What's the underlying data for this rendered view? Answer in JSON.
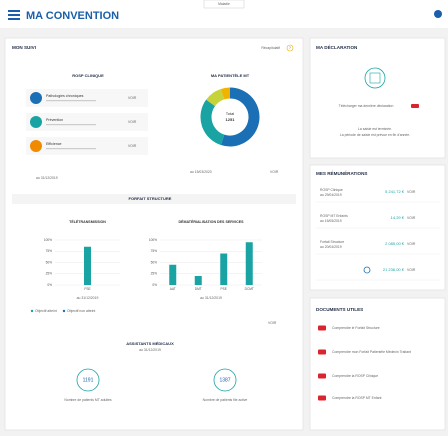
{
  "header": {
    "title": "MA CONVENTION",
    "tab": "Maladie"
  },
  "suivi": {
    "title": "MON SUIVI",
    "recap": "Récapitulatif",
    "help": "?",
    "rosp": {
      "title": "ROSP CLINIQUE",
      "items": [
        "Pathologies chroniques",
        "Prévention",
        "Efficience"
      ],
      "link": "VOIR",
      "date": "au 31/12/2019"
    },
    "patientele": {
      "title": "MA PATIENTÈLE MT",
      "total_label": "Total",
      "total": "1251",
      "date": "au 15/03/2020",
      "link": "VOIR",
      "segments": [
        {
          "color": "#1b6fb5",
          "value": 55
        },
        {
          "color": "#19a3a3",
          "value": 30
        },
        {
          "color": "#c6d33a",
          "value": 10
        },
        {
          "color": "#f0b400",
          "value": 5
        }
      ]
    },
    "forfait": {
      "title": "FORFAIT STRUCTURE",
      "charts": [
        {
          "title": "TÉLÉTRANSMISSION",
          "categories": [
            "FSE"
          ],
          "values": [
            85
          ],
          "color": "#19a3a3",
          "ylim": [
            0,
            100
          ],
          "yticks": [
            {
              "value": 0,
              "label": "0%"
            },
            {
              "value": 25,
              "label": "25%"
            },
            {
              "value": 50,
              "label": "50%"
            },
            {
              "value": 75,
              "label": "75%"
            },
            {
              "value": 100,
              "label": "100%"
            }
          ],
          "date": "au 31/12/2019"
        },
        {
          "title": "DÉMATÉRIALISATION DES SERVICES",
          "categories": [
            "AAT",
            "DMT",
            "PSE",
            "DCMT"
          ],
          "values": [
            45,
            20,
            70,
            95
          ],
          "color": "#19a3a3",
          "ylim": [
            0,
            100
          ],
          "yticks": [
            {
              "value": 0,
              "label": "0%"
            },
            {
              "value": 25,
              "label": "25%"
            },
            {
              "value": 50,
              "label": "50%"
            },
            {
              "value": 75,
              "label": "75%"
            },
            {
              "value": 100,
              "label": "100%"
            }
          ],
          "date": "au 31/12/2019"
        }
      ],
      "legend": [
        "Objectif atteint",
        "Objectif non atteint"
      ],
      "link": "VOIR"
    },
    "assistants": {
      "title": "ASSISTANTS MÉDICAUX",
      "date": "au 31/12/2019",
      "stats": [
        {
          "value": "1191",
          "label": "Nombre de patients MT adultes"
        },
        {
          "value": "1387",
          "label": "Nombre de patients file active"
        }
      ]
    }
  },
  "declaration": {
    "title": "MA DÉCLARATION",
    "link": "Télécharger ma dernière déclaration",
    "status": "La saisie est terminée.",
    "note": "La période de saisie est prévue en fin d'année."
  },
  "remunerations": {
    "title": "MES RÉMUNÉRATIONS",
    "link": "VOIR",
    "rows": [
      {
        "name": "ROSP Clinique",
        "date": "au 29/04/2019",
        "amount": "5 241,72 €"
      },
      {
        "name": "ROSP MT Enfants",
        "date": "au 15/05/2019",
        "amount": "14,29 €"
      },
      {
        "name": "Forfait Structure",
        "date": "au 20/04/2019",
        "amount": "2 085,00 €"
      },
      {
        "amount": "21 236,00 €"
      }
    ]
  },
  "documents": {
    "title": "DOCUMENTS UTILES",
    "items": [
      "Comprendre le Forfait Structure",
      "Comprendre mon Forfait Patientèle Médecin Traitant",
      "Comprendre la ROSP Clinique",
      "Comprendre la ROSP MT Enfant"
    ]
  }
}
